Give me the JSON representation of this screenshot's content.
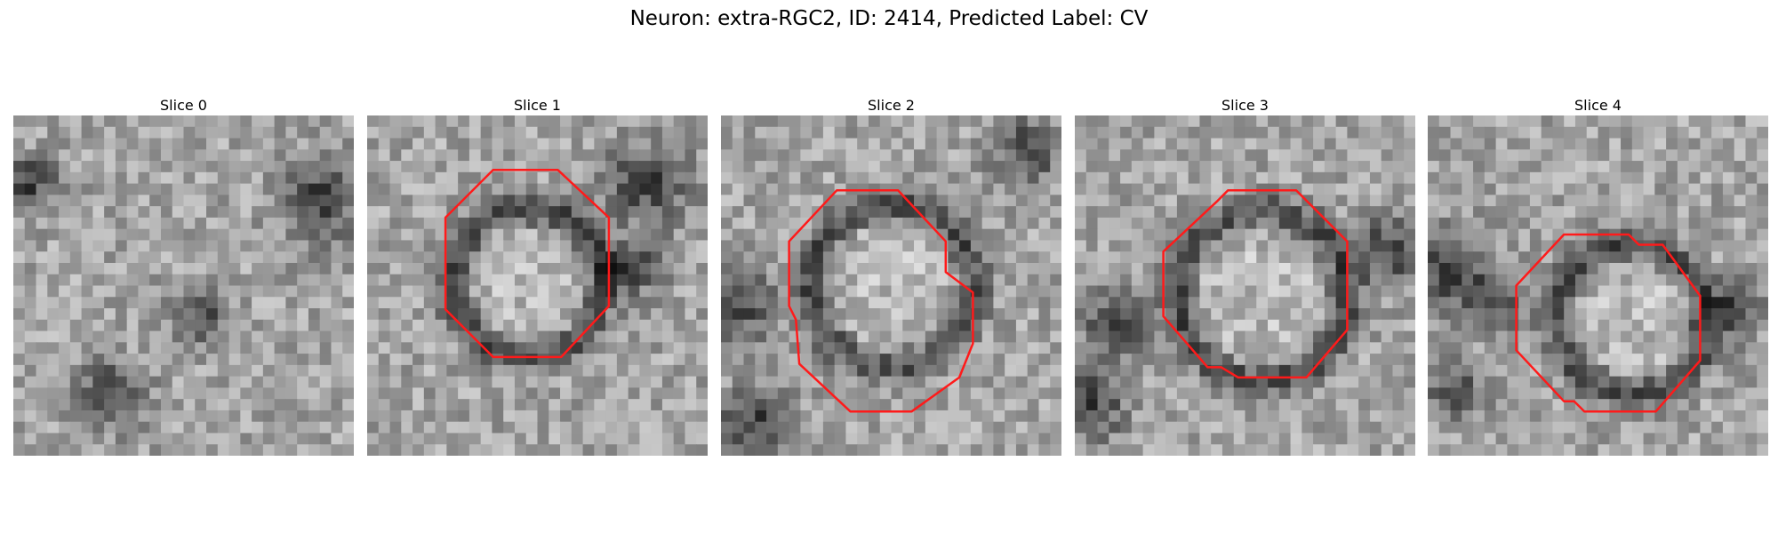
{
  "figure": {
    "title": "Neuron: extra-RGC2, ID: 2414, Predicted Label: CV"
  },
  "panels": [
    {
      "title": "Slice 0",
      "seed": 11,
      "has_contour": false,
      "dark_ring": false,
      "center": [
        0.5,
        0.5
      ],
      "radius": 0.0,
      "dark_blobs": [
        [
          0.05,
          0.2,
          0.08
        ],
        [
          0.9,
          0.25,
          0.12
        ],
        [
          0.28,
          0.82,
          0.1
        ],
        [
          0.55,
          0.6,
          0.08
        ]
      ],
      "contour": []
    },
    {
      "title": "Slice 1",
      "seed": 23,
      "has_contour": true,
      "dark_ring": true,
      "center": [
        0.47,
        0.49
      ],
      "radius": 0.22,
      "dark_blobs": [
        [
          0.82,
          0.2,
          0.12
        ],
        [
          0.78,
          0.45,
          0.08
        ]
      ],
      "contour": [
        [
          0.37,
          0.16
        ],
        [
          0.56,
          0.16
        ],
        [
          0.71,
          0.3
        ],
        [
          0.71,
          0.56
        ],
        [
          0.57,
          0.71
        ],
        [
          0.37,
          0.71
        ],
        [
          0.23,
          0.57
        ],
        [
          0.23,
          0.3
        ]
      ]
    },
    {
      "title": "Slice 2",
      "seed": 37,
      "has_contour": true,
      "dark_ring": true,
      "center": [
        0.5,
        0.5
      ],
      "radius": 0.24,
      "dark_blobs": [
        [
          0.04,
          0.55,
          0.12
        ],
        [
          0.9,
          0.1,
          0.1
        ],
        [
          0.1,
          0.9,
          0.1
        ]
      ],
      "contour": [
        [
          0.34,
          0.22
        ],
        [
          0.52,
          0.22
        ],
        [
          0.66,
          0.37
        ],
        [
          0.66,
          0.46
        ],
        [
          0.74,
          0.52
        ],
        [
          0.74,
          0.67
        ],
        [
          0.7,
          0.77
        ],
        [
          0.56,
          0.87
        ],
        [
          0.38,
          0.87
        ],
        [
          0.23,
          0.73
        ],
        [
          0.22,
          0.6
        ],
        [
          0.2,
          0.56
        ],
        [
          0.2,
          0.37
        ]
      ]
    },
    {
      "title": "Slice 3",
      "seed": 53,
      "has_contour": true,
      "dark_ring": true,
      "center": [
        0.55,
        0.53
      ],
      "radius": 0.25,
      "dark_blobs": [
        [
          0.12,
          0.62,
          0.1
        ],
        [
          0.05,
          0.85,
          0.1
        ],
        [
          0.92,
          0.4,
          0.1
        ]
      ],
      "contour": [
        [
          0.45,
          0.22
        ],
        [
          0.65,
          0.22
        ],
        [
          0.8,
          0.37
        ],
        [
          0.8,
          0.63
        ],
        [
          0.68,
          0.77
        ],
        [
          0.48,
          0.77
        ],
        [
          0.43,
          0.74
        ],
        [
          0.39,
          0.74
        ],
        [
          0.26,
          0.59
        ],
        [
          0.26,
          0.4
        ],
        [
          0.42,
          0.25
        ]
      ]
    },
    {
      "title": "Slice 4",
      "seed": 71,
      "has_contour": true,
      "dark_ring": true,
      "center": [
        0.6,
        0.6
      ],
      "radius": 0.22,
      "dark_blobs": [
        [
          0.06,
          0.45,
          0.12
        ],
        [
          0.2,
          0.55,
          0.08
        ],
        [
          0.08,
          0.8,
          0.08
        ],
        [
          0.9,
          0.58,
          0.08
        ]
      ],
      "contour": [
        [
          0.4,
          0.35
        ],
        [
          0.59,
          0.35
        ],
        [
          0.62,
          0.38
        ],
        [
          0.69,
          0.38
        ],
        [
          0.8,
          0.53
        ],
        [
          0.8,
          0.72
        ],
        [
          0.67,
          0.87
        ],
        [
          0.46,
          0.87
        ],
        [
          0.43,
          0.84
        ],
        [
          0.4,
          0.84
        ],
        [
          0.26,
          0.69
        ],
        [
          0.26,
          0.5
        ]
      ]
    }
  ],
  "contour_color": "#ff1a1a"
}
